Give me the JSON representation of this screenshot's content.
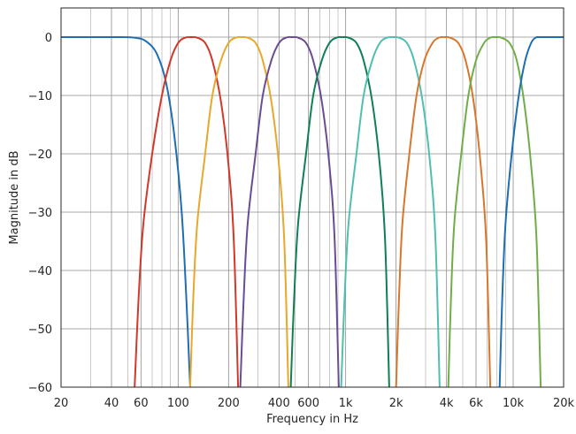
{
  "chart_data": {
    "type": "line",
    "title": "",
    "xlabel": "Frequency in Hz",
    "ylabel": "Magnitude in dB",
    "xscale": "log",
    "xlim": [
      20,
      20000
    ],
    "ylim": [
      -60,
      5
    ],
    "grid": true,
    "x_ticks": [
      {
        "value": 20,
        "label": "20"
      },
      {
        "value": 40,
        "label": "40"
      },
      {
        "value": 60,
        "label": "60"
      },
      {
        "value": 100,
        "label": "100"
      },
      {
        "value": 200,
        "label": "200"
      },
      {
        "value": 400,
        "label": "400"
      },
      {
        "value": 600,
        "label": "600"
      },
      {
        "value": 1000,
        "label": "1k"
      },
      {
        "value": 2000,
        "label": "2k"
      },
      {
        "value": 4000,
        "label": "4k"
      },
      {
        "value": 6000,
        "label": "6k"
      },
      {
        "value": 10000,
        "label": "10k"
      },
      {
        "value": 20000,
        "label": "20k"
      }
    ],
    "y_ticks": [
      {
        "value": 0,
        "label": "0"
      },
      {
        "value": -10,
        "label": "−10"
      },
      {
        "value": -20,
        "label": "−20"
      },
      {
        "value": -30,
        "label": "−30"
      },
      {
        "value": -40,
        "label": "−40"
      },
      {
        "value": -50,
        "label": "−50"
      },
      {
        "value": -60,
        "label": "−60"
      }
    ],
    "series": [
      {
        "color": "#1f6db3",
        "points": [
          [
            20,
            0
          ],
          [
            40,
            0
          ],
          [
            55,
            -0.1
          ],
          [
            65,
            -0.8
          ],
          [
            75,
            -3
          ],
          [
            85,
            -8
          ],
          [
            95,
            -17
          ],
          [
            105,
            -30
          ],
          [
            112,
            -45
          ],
          [
            118,
            -60
          ]
        ]
      },
      {
        "color": "#d0382a",
        "points": [
          [
            55,
            -60
          ],
          [
            58,
            -45
          ],
          [
            62,
            -32
          ],
          [
            70,
            -20
          ],
          [
            80,
            -10
          ],
          [
            90,
            -4
          ],
          [
            100,
            -1
          ],
          [
            110,
            -0.1
          ],
          [
            120,
            0
          ],
          [
            130,
            -0.1
          ],
          [
            145,
            -1
          ],
          [
            160,
            -4
          ],
          [
            180,
            -11
          ],
          [
            200,
            -22
          ],
          [
            215,
            -35
          ],
          [
            228,
            -60
          ]
        ]
      },
      {
        "color": "#e8a82a",
        "points": [
          [
            118,
            -60
          ],
          [
            123,
            -45
          ],
          [
            130,
            -32
          ],
          [
            145,
            -20
          ],
          [
            160,
            -10
          ],
          [
            180,
            -4
          ],
          [
            200,
            -1
          ],
          [
            220,
            -0.1
          ],
          [
            240,
            0
          ],
          [
            260,
            -0.1
          ],
          [
            290,
            -1
          ],
          [
            320,
            -4
          ],
          [
            360,
            -11
          ],
          [
            400,
            -22
          ],
          [
            430,
            -35
          ],
          [
            455,
            -60
          ]
        ]
      },
      {
        "color": "#6a4c93",
        "points": [
          [
            235,
            -60
          ],
          [
            246,
            -45
          ],
          [
            260,
            -32
          ],
          [
            290,
            -20
          ],
          [
            320,
            -10
          ],
          [
            360,
            -4
          ],
          [
            400,
            -1
          ],
          [
            440,
            -0.1
          ],
          [
            480,
            0
          ],
          [
            520,
            -0.1
          ],
          [
            580,
            -1
          ],
          [
            640,
            -4
          ],
          [
            720,
            -11
          ],
          [
            800,
            -22
          ],
          [
            860,
            -35
          ],
          [
            910,
            -60
          ]
        ]
      },
      {
        "color": "#0f7f55",
        "points": [
          [
            470,
            -60
          ],
          [
            492,
            -45
          ],
          [
            520,
            -32
          ],
          [
            580,
            -20
          ],
          [
            640,
            -10
          ],
          [
            720,
            -4
          ],
          [
            800,
            -1
          ],
          [
            880,
            -0.1
          ],
          [
            960,
            0
          ],
          [
            1040,
            -0.1
          ],
          [
            1160,
            -1
          ],
          [
            1280,
            -4
          ],
          [
            1440,
            -11
          ],
          [
            1600,
            -22
          ],
          [
            1720,
            -35
          ],
          [
            1820,
            -60
          ]
        ]
      },
      {
        "color": "#4fbfb0",
        "points": [
          [
            940,
            -60
          ],
          [
            984,
            -45
          ],
          [
            1040,
            -32
          ],
          [
            1160,
            -20
          ],
          [
            1280,
            -10
          ],
          [
            1440,
            -4
          ],
          [
            1600,
            -1
          ],
          [
            1760,
            -0.1
          ],
          [
            1920,
            0
          ],
          [
            2080,
            -0.1
          ],
          [
            2320,
            -1
          ],
          [
            2560,
            -4
          ],
          [
            2880,
            -11
          ],
          [
            3200,
            -22
          ],
          [
            3440,
            -35
          ],
          [
            3640,
            -60
          ]
        ]
      },
      {
        "color": "#d9762b",
        "points": [
          [
            2000,
            -60
          ],
          [
            2080,
            -45
          ],
          [
            2180,
            -32
          ],
          [
            2400,
            -20
          ],
          [
            2650,
            -10
          ],
          [
            2950,
            -4
          ],
          [
            3300,
            -1
          ],
          [
            3600,
            -0.1
          ],
          [
            3900,
            0
          ],
          [
            4200,
            -0.1
          ],
          [
            4700,
            -1
          ],
          [
            5200,
            -4
          ],
          [
            5800,
            -11
          ],
          [
            6400,
            -22
          ],
          [
            6900,
            -35
          ],
          [
            7300,
            -60
          ]
        ]
      },
      {
        "color": "#6fae47",
        "points": [
          [
            4100,
            -60
          ],
          [
            4250,
            -45
          ],
          [
            4450,
            -32
          ],
          [
            4900,
            -20
          ],
          [
            5400,
            -10
          ],
          [
            6000,
            -4
          ],
          [
            6700,
            -1
          ],
          [
            7300,
            -0.1
          ],
          [
            7900,
            0
          ],
          [
            8500,
            -0.1
          ],
          [
            9500,
            -1
          ],
          [
            10500,
            -4
          ],
          [
            11600,
            -11
          ],
          [
            12800,
            -22
          ],
          [
            13800,
            -35
          ],
          [
            14600,
            -60
          ]
        ]
      },
      {
        "color": "#1f6db3",
        "points": [
          [
            8300,
            -60
          ],
          [
            8600,
            -45
          ],
          [
            9000,
            -32
          ],
          [
            9800,
            -20
          ],
          [
            10800,
            -10
          ],
          [
            11800,
            -4
          ],
          [
            12800,
            -1
          ],
          [
            13600,
            -0.1
          ],
          [
            14500,
            0
          ],
          [
            20000,
            0
          ]
        ]
      }
    ]
  }
}
